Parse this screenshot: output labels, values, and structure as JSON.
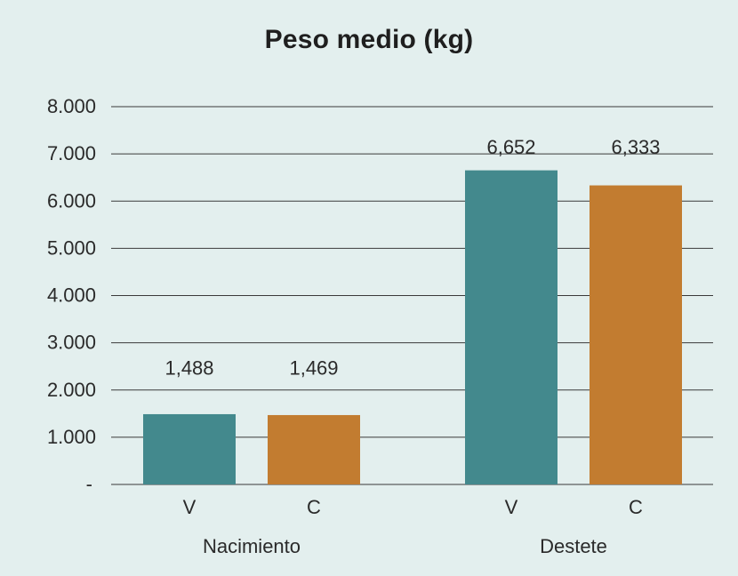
{
  "chart_data": {
    "type": "bar",
    "title": "Peso medio (kg)",
    "groups": [
      "Nacimiento",
      "Destete"
    ],
    "categories": [
      "V",
      "C",
      "V",
      "C"
    ],
    "series_colors": {
      "V": "#43898d",
      "C": "#c27c30"
    },
    "values": [
      1.488,
      1.469,
      6.652,
      6.333
    ],
    "data_labels": [
      "1,488",
      "1,469",
      "6,652",
      "6,333"
    ],
    "y_ticks": [
      {
        "value": 0,
        "label": "-"
      },
      {
        "value": 1,
        "label": "1.000"
      },
      {
        "value": 2,
        "label": "2.000"
      },
      {
        "value": 3,
        "label": "3.000"
      },
      {
        "value": 4,
        "label": "4.000"
      },
      {
        "value": 5,
        "label": "5.000"
      },
      {
        "value": 6,
        "label": "6.000"
      },
      {
        "value": 7,
        "label": "7.000"
      },
      {
        "value": 8,
        "label": "8.000"
      }
    ],
    "ylim": [
      0,
      8
    ],
    "grid": true,
    "legend": "none"
  }
}
